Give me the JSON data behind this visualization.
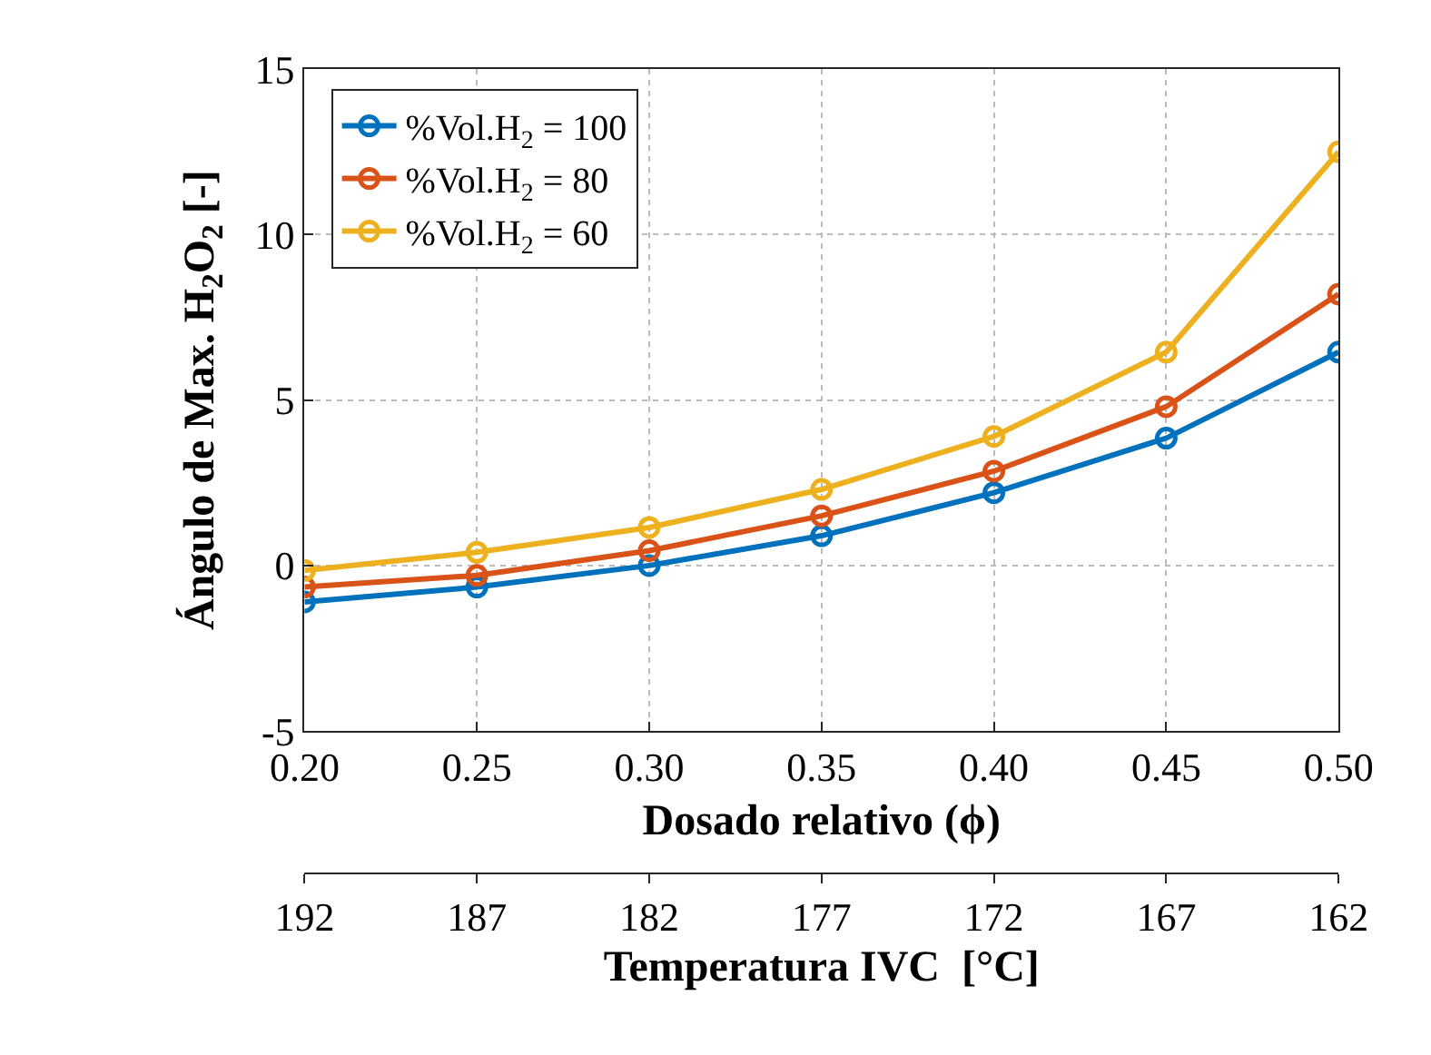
{
  "chart_data": {
    "type": "line",
    "xlabel": "Dosado relativo (ϕ)",
    "ylabel": "Ángulo de Max. H$_{2}$O$_{2}$ [-]",
    "x2label": "Temperatura IVC  [°C]",
    "x": [
      0.2,
      0.25,
      0.3,
      0.35,
      0.4,
      0.45,
      0.5
    ],
    "series": [
      {
        "name": "%Vol.H$_{2}$ = 100",
        "color": "#0072bd",
        "values": [
          -1.1,
          -0.65,
          0,
          0.9,
          2.2,
          3.85,
          6.45
        ]
      },
      {
        "name": "%Vol.H$_{2}$ = 80",
        "color": "#d95319",
        "values": [
          -0.65,
          -0.3,
          0.45,
          1.5,
          2.85,
          4.8,
          8.2
        ]
      },
      {
        "name": "%Vol.H$_{2}$ = 60",
        "color": "#edb120",
        "values": [
          -0.15,
          0.4,
          1.15,
          2.3,
          3.9,
          6.45,
          12.5
        ]
      }
    ],
    "xlim": [
      0.2,
      0.5
    ],
    "xticks": [
      {
        "value": 0.2,
        "label": "0.20"
      },
      {
        "value": 0.25,
        "label": "0.25"
      },
      {
        "value": 0.3,
        "label": "0.30"
      },
      {
        "value": 0.35,
        "label": "0.35"
      },
      {
        "value": 0.4,
        "label": "0.40"
      },
      {
        "value": 0.45,
        "label": "0.45"
      },
      {
        "value": 0.5,
        "label": "0.50"
      }
    ],
    "ylim": [
      -5,
      15
    ],
    "yticks": [
      -5,
      0,
      5,
      10,
      15
    ],
    "x2lim": [
      192,
      162
    ],
    "x2ticks": [
      192,
      187,
      182,
      177,
      172,
      167,
      162
    ],
    "grid": true,
    "legend": "top left",
    "marker": "circle",
    "line_style": "solid"
  }
}
